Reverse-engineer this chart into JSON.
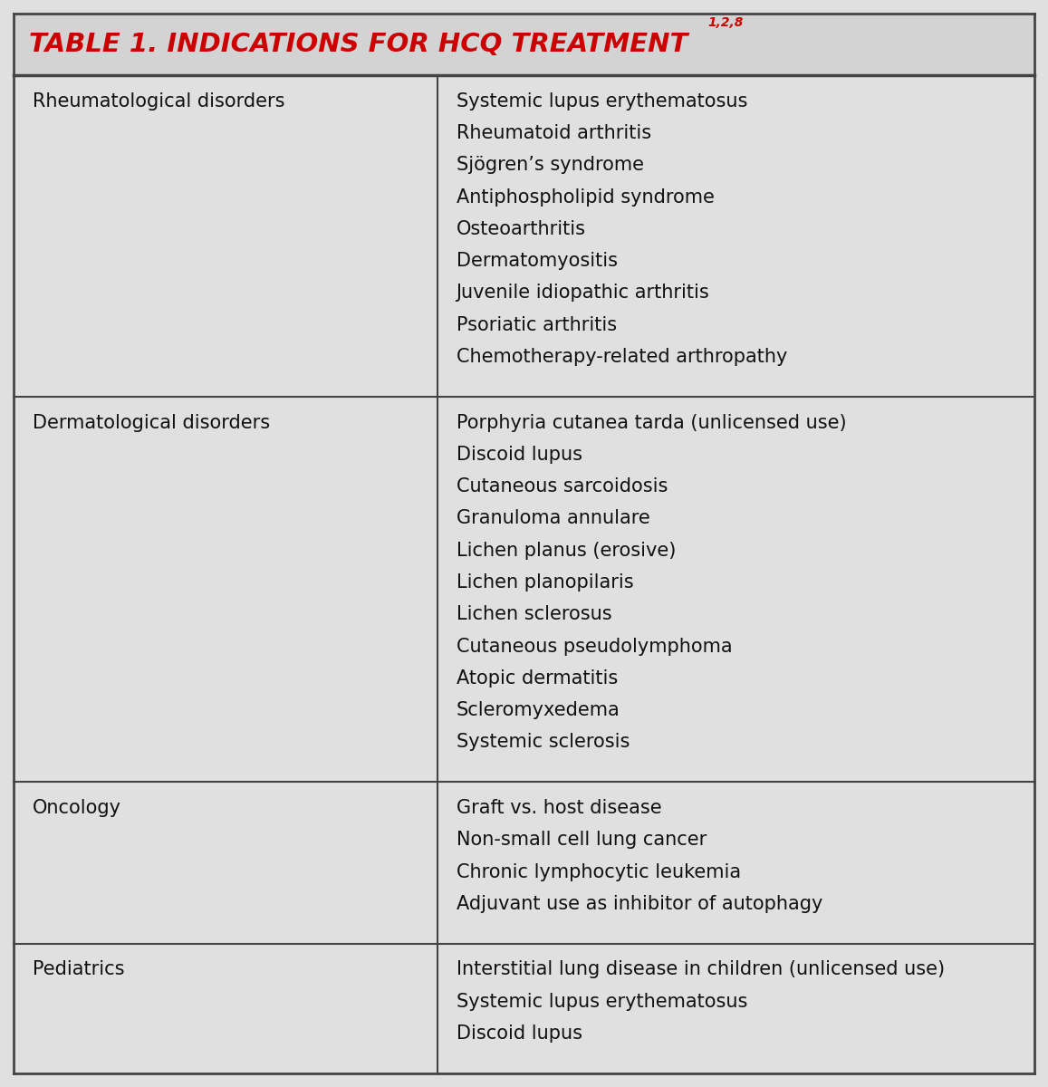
{
  "title": "TABLE 1. INDICATIONS FOR HCQ TREATMENT",
  "title_superscript": "1,2,8",
  "title_color": "#CC0000",
  "title_bg_color": "#D3D3D3",
  "table_bg_color": "#E0E0E0",
  "border_color": "#444444",
  "text_color": "#111111",
  "col_split": 0.415,
  "rows": [
    {
      "category": "Rheumatological disorders",
      "items": [
        "Systemic lupus erythematosus",
        "Rheumatoid arthritis",
        "Sjögren’s syndrome",
        "Antiphospholipid syndrome",
        "Osteoarthritis",
        "Dermatomyositis",
        "Juvenile idiopathic arthritis",
        "Psoriatic arthritis",
        "Chemotherapy-related arthropathy"
      ]
    },
    {
      "category": "Dermatological disorders",
      "items": [
        "Porphyria cutanea tarda (unlicensed use)",
        "Discoid lupus",
        "Cutaneous sarcoidosis",
        "Granuloma annulare",
        "Lichen planus (erosive)",
        "Lichen planopilaris",
        "Lichen sclerosus",
        "Cutaneous pseudolymphoma",
        "Atopic dermatitis",
        "Scleromyxedema",
        "Systemic sclerosis"
      ]
    },
    {
      "category": "Oncology",
      "items": [
        "Graft vs. host disease",
        "Non-small cell lung cancer",
        "Chronic lymphocytic leukemia",
        "Adjuvant use as inhibitor of autophagy"
      ]
    },
    {
      "category": "Pediatrics",
      "items": [
        "Interstitial lung disease in children (unlicensed use)",
        "Systemic lupus erythematosus",
        "Discoid lupus"
      ]
    }
  ]
}
